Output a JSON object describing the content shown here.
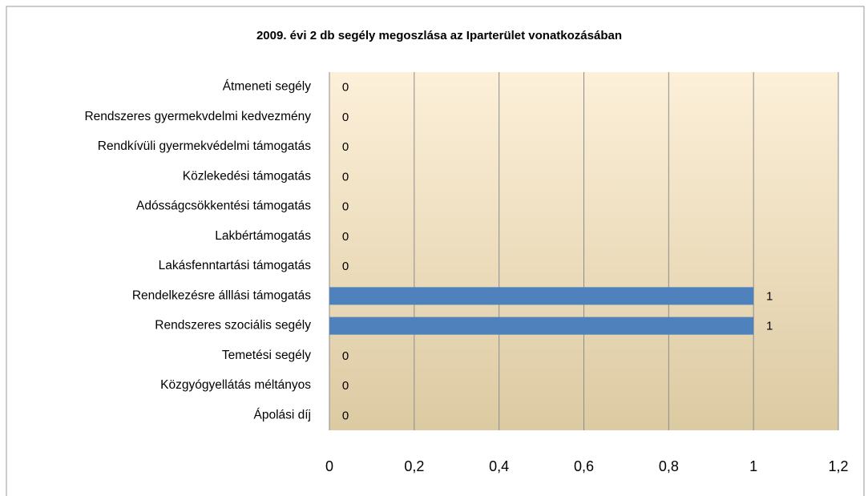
{
  "chart_data": {
    "type": "bar",
    "orientation": "horizontal",
    "title": "2009. évi  2 db segély megoszlása az Iparterület vonatkozásában",
    "categories": [
      "Átmeneti segély",
      "Rendszeres gyermekvdelmi kedvezmény",
      "Rendkívüli gyermekvédelmi támogatás",
      "Közlekedési támogatás",
      "Adósságcsökkentési támogatás",
      "Lakbértámogatás",
      "Lakásfenntartási támogatás",
      "Rendelkezésre álllási támogatás",
      "Rendszeres szociális segély",
      "Temetési segély",
      "Közgyógyellátás méltányos",
      "Ápolási díj"
    ],
    "values": [
      0,
      0,
      0,
      0,
      0,
      0,
      0,
      1,
      1,
      0,
      0,
      0
    ],
    "color": "#4f81bd",
    "xlim": [
      0,
      1.2
    ],
    "xticks": [
      0,
      {
        "value": 0.2,
        "label": "0,2"
      },
      {
        "value": 0.4,
        "label": "0,4"
      },
      {
        "value": 0.6,
        "label": "0,6"
      },
      {
        "value": 0.8,
        "label": "0,8"
      },
      1,
      {
        "value": 1.2,
        "label": "1,2"
      }
    ],
    "grid": true
  }
}
